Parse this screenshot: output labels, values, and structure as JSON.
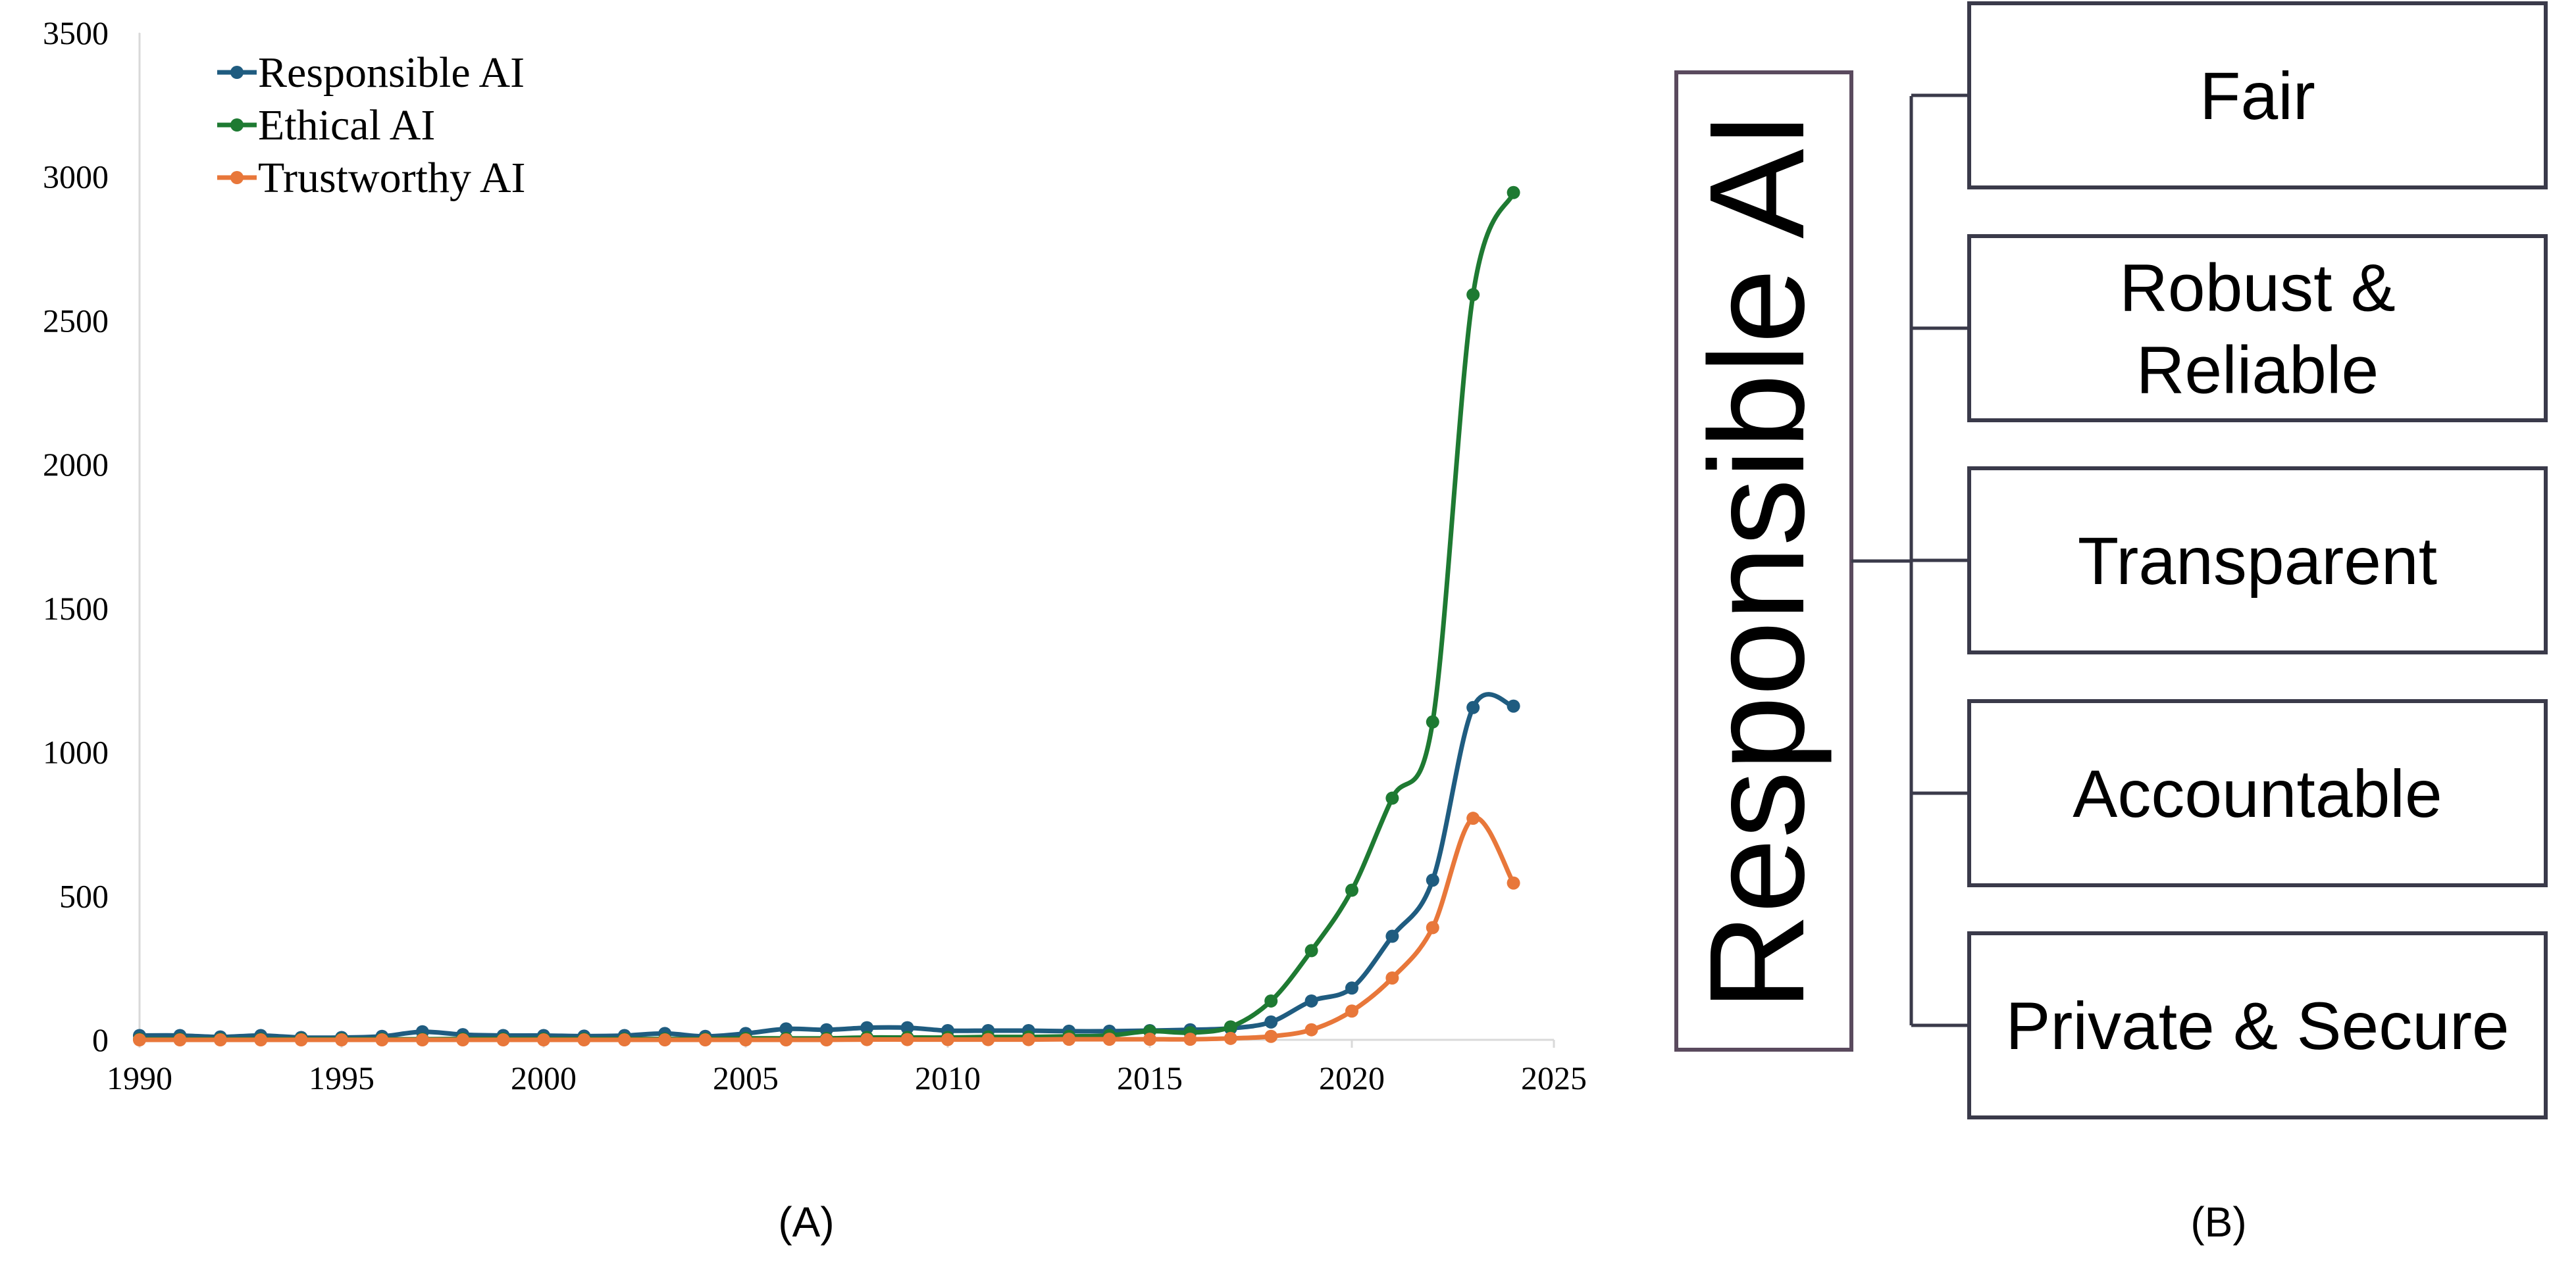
{
  "chart_data": {
    "type": "line",
    "caption": "(A)",
    "x": [
      1990,
      1991,
      1992,
      1993,
      1994,
      1995,
      1996,
      1997,
      1998,
      1999,
      2000,
      2001,
      2002,
      2003,
      2004,
      2005,
      2006,
      2007,
      2008,
      2009,
      2010,
      2011,
      2012,
      2013,
      2014,
      2015,
      2016,
      2017,
      2018,
      2019,
      2020,
      2021,
      2022,
      2023,
      2024
    ],
    "series": [
      {
        "name": "Responsible AI",
        "color": "#1f5c80",
        "values": [
          15,
          15,
          10,
          15,
          8,
          8,
          12,
          28,
          18,
          15,
          15,
          13,
          15,
          22,
          12,
          22,
          38,
          35,
          42,
          42,
          32,
          32,
          32,
          30,
          30,
          32,
          35,
          40,
          62,
          135,
          180,
          360,
          555,
          1155,
          1160
        ]
      },
      {
        "name": "Ethical AI",
        "color": "#1e7a32",
        "values": [
          2,
          2,
          2,
          2,
          2,
          2,
          2,
          2,
          3,
          3,
          3,
          3,
          3,
          3,
          3,
          5,
          5,
          5,
          8,
          8,
          8,
          10,
          10,
          12,
          15,
          30,
          25,
          45,
          135,
          310,
          520,
          840,
          1105,
          2590,
          2945
        ]
      },
      {
        "name": "Trustworthy AI",
        "color": "#e8773a",
        "values": [
          0,
          0,
          0,
          0,
          0,
          0,
          0,
          0,
          0,
          0,
          0,
          0,
          0,
          0,
          0,
          0,
          0,
          0,
          1,
          1,
          1,
          1,
          1,
          2,
          2,
          2,
          2,
          5,
          12,
          35,
          100,
          215,
          390,
          770,
          545
        ]
      }
    ],
    "xlim": [
      1990,
      2025
    ],
    "xticks": [
      1990,
      1995,
      2000,
      2005,
      2010,
      2015,
      2020,
      2025
    ],
    "ylim": [
      0,
      3500
    ],
    "yticks": [
      0,
      500,
      1000,
      1500,
      2000,
      2500,
      3000,
      3500
    ],
    "grid": false,
    "legend": "upper left",
    "smooth": true
  },
  "diagram": {
    "caption": "(B)",
    "root": "Responsible AI",
    "nodes": [
      {
        "lines": [
          "Fair"
        ]
      },
      {
        "lines": [
          "Robust &",
          "Reliable"
        ]
      },
      {
        "lines": [
          "Transparent"
        ]
      },
      {
        "lines": [
          "Accountable"
        ]
      },
      {
        "lines": [
          "Private & Secure"
        ]
      }
    ]
  }
}
